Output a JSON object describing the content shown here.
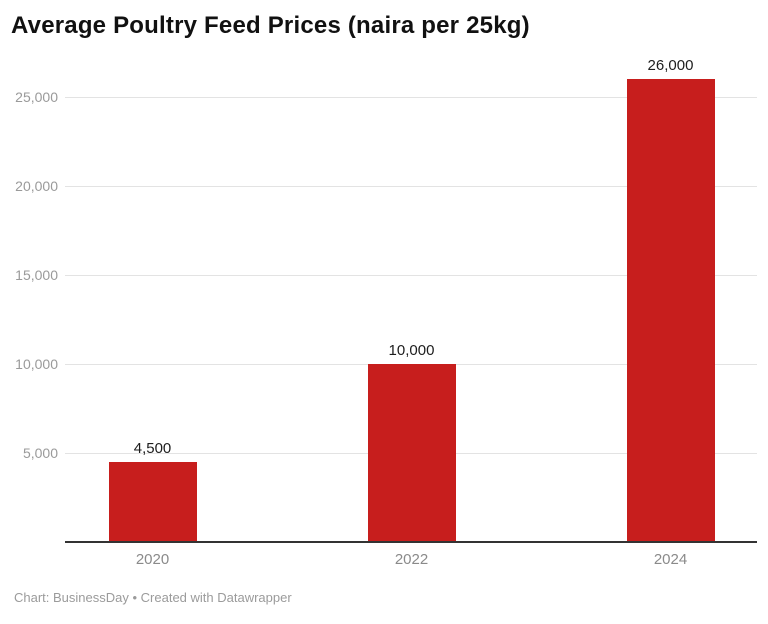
{
  "title": "Average Poultry Feed Prices (naira per 25kg)",
  "footer": "Chart: BusinessDay • Created with Datawrapper",
  "colors": {
    "bar": "#c71e1d",
    "grid": "#e3e3e3",
    "axis": "#333333",
    "y_tick_label": "#9a9a9a",
    "x_tick_label": "#8a8a8a",
    "value_label": "#1d1d1d",
    "background": "#ffffff"
  },
  "chart_data": {
    "type": "bar",
    "title": "Average Poultry Feed Prices (naira per 25kg)",
    "categories": [
      "2020",
      "2022",
      "2024"
    ],
    "values": [
      4500,
      10000,
      26000
    ],
    "value_labels": [
      "4,500",
      "10,000",
      "26,000"
    ],
    "xlabel": "",
    "ylabel": "",
    "ylim": [
      0,
      26000
    ],
    "yticks": [
      5000,
      10000,
      15000,
      20000,
      25000
    ],
    "ytick_labels": [
      "5,000",
      "10,000",
      "15,000",
      "20,000",
      "25,000"
    ],
    "grid": "horizontal-only",
    "legend": "none",
    "attribution": "Chart: BusinessDay • Created with Datawrapper"
  }
}
